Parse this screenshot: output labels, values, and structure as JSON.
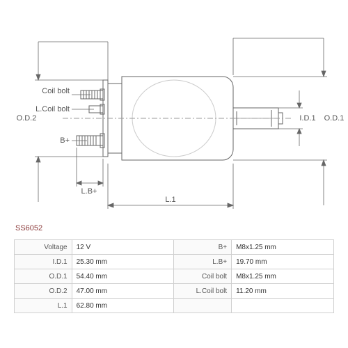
{
  "part_number": "SS6052",
  "diagram": {
    "labels": {
      "coil_bolt": "Coil bolt",
      "l_coil_bolt": "L.Coil bolt",
      "b_plus": "B+",
      "lb_plus": "L.B+",
      "l1": "L.1",
      "od1": "O.D.1",
      "od2": "O.D.2",
      "id1": "I.D.1"
    },
    "stroke": "#666666",
    "stroke_width": 1,
    "dim_color": "#555555"
  },
  "specs": {
    "rows": [
      {
        "l": "Voltage",
        "v": "12 V",
        "r": "B+",
        "rv": "M8x1.25 mm"
      },
      {
        "l": "I.D.1",
        "v": "25.30 mm",
        "r": "L.B+",
        "rv": "19.70 mm"
      },
      {
        "l": "O.D.1",
        "v": "54.40 mm",
        "r": "Coil bolt",
        "rv": "M8x1.25 mm"
      },
      {
        "l": "O.D.2",
        "v": "47.00 mm",
        "r": "L.Coil bolt",
        "rv": "11.20 mm"
      },
      {
        "l": "L.1",
        "v": "62.80 mm",
        "r": "",
        "rv": ""
      }
    ]
  }
}
